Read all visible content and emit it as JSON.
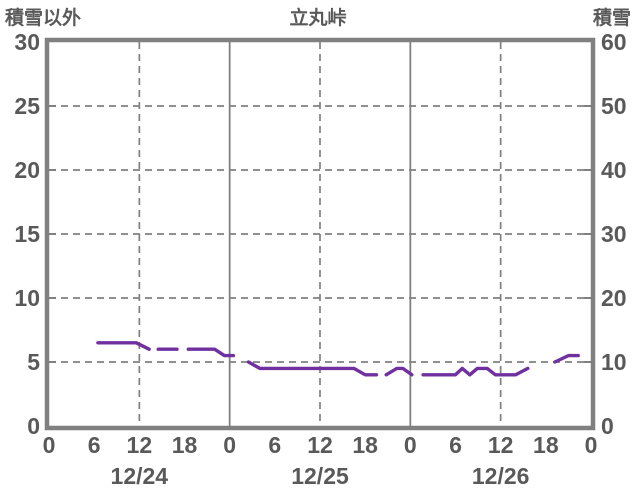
{
  "header": {
    "axis_left_title": "積雪以外",
    "chart_title": "立丸峠",
    "axis_right_title": "積雪"
  },
  "chart_data": {
    "type": "line",
    "title": "立丸峠",
    "y_axis_left": {
      "label": "積雪以外",
      "min": 0,
      "max": 30,
      "ticks": [
        "30",
        "25",
        "20",
        "15",
        "10",
        "5",
        "0"
      ]
    },
    "y_axis_right": {
      "label": "積雪",
      "min": 0,
      "max": 60,
      "ticks": [
        "60",
        "50",
        "40",
        "30",
        "20",
        "10",
        "0"
      ]
    },
    "x_axis": {
      "hours_total": 72,
      "tick_step_hours": 6,
      "hour_ticks": [
        "0",
        "6",
        "12",
        "18",
        "0",
        "6",
        "12",
        "18",
        "0",
        "6",
        "12",
        "18",
        "0"
      ],
      "dates": [
        "12/24",
        "12/25",
        "12/26"
      ]
    },
    "grid": {
      "h_dashed_right_values": [
        10,
        20,
        30,
        40,
        50
      ],
      "v_dashed_hours": [
        12,
        36,
        60
      ],
      "v_solid_hours": [
        24,
        48
      ],
      "left_tick_values": [
        5,
        10,
        15,
        20,
        25
      ],
      "right_tick_values": [
        10,
        20,
        30,
        40,
        50
      ]
    },
    "series": [
      {
        "name": "積雪",
        "axis": "right",
        "unit": "cm",
        "color": "#7030A0",
        "segments": [
          [
            [
              6.5,
              13
            ],
            [
              11.6,
              13
            ],
            [
              13.3,
              12
            ]
          ],
          [
            [
              14.5,
              12
            ],
            [
              17,
              12
            ]
          ],
          [
            [
              18.5,
              12
            ],
            [
              22,
              12
            ],
            [
              23.3,
              11
            ],
            [
              24.5,
              11
            ]
          ],
          [
            [
              26.5,
              10
            ],
            [
              28,
              9
            ],
            [
              40.5,
              9
            ],
            [
              42,
              8
            ],
            [
              43.5,
              8
            ]
          ],
          [
            [
              44.8,
              8
            ],
            [
              46.2,
              9
            ],
            [
              47,
              9
            ],
            [
              48.2,
              8
            ]
          ],
          [
            [
              49.7,
              8
            ],
            [
              54,
              8
            ],
            [
              54.9,
              9
            ],
            [
              55.9,
              8
            ],
            [
              56.9,
              9
            ],
            [
              58.2,
              9
            ],
            [
              59.3,
              8
            ],
            [
              62,
              8
            ],
            [
              63.6,
              9
            ]
          ],
          [
            [
              67.2,
              10
            ],
            [
              69,
              11
            ],
            [
              70.3,
              11
            ]
          ]
        ]
      }
    ],
    "colors": {
      "line": "#7030A0",
      "grid": "#808080",
      "border": "#808080",
      "text": "#595959",
      "background": "#FFFFFF"
    }
  }
}
